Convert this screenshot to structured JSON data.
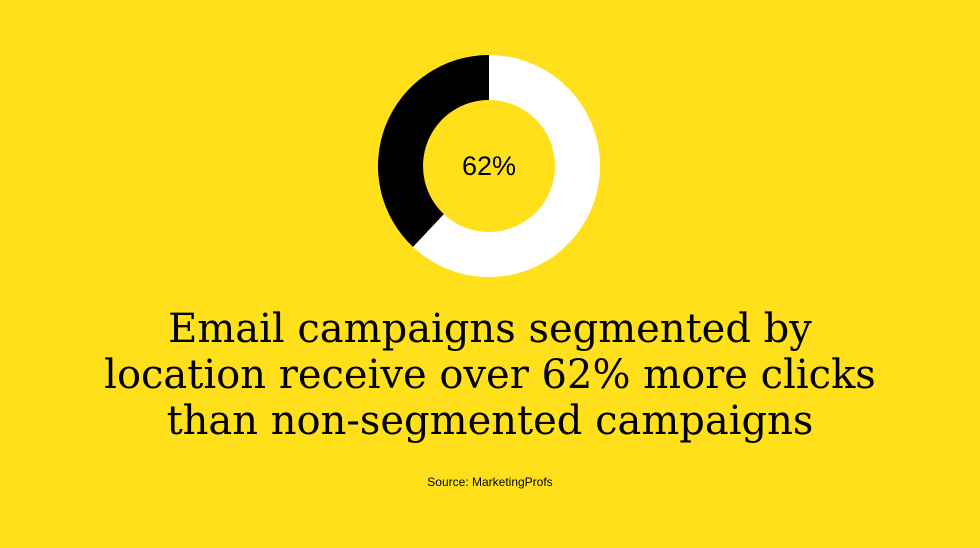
{
  "chart_data": {
    "type": "pie",
    "style": "donut",
    "slices": [
      {
        "value": 62,
        "color": "#FFFFFF"
      },
      {
        "value": 38,
        "color": "#000000"
      }
    ],
    "center_label": "62%",
    "title": "",
    "legend": "none"
  },
  "headline": {
    "lines": [
      "Email campaigns segmented by",
      "location receive over 62% more clicks",
      "than non-segmented campaigns"
    ]
  },
  "source": "Source: MarketingProfs",
  "colors": {
    "background": "#FFE01B",
    "text": "#000000"
  }
}
